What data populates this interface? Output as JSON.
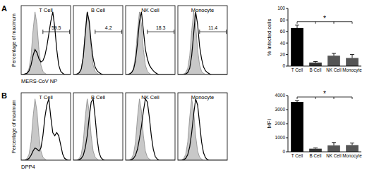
{
  "chart_data": [
    {
      "type": "line",
      "panel_label": "A",
      "title": "T Cell",
      "ylabel": "Percentage of maximum",
      "xlabel": "MERS-CoV NP",
      "tick_labels": false,
      "xlim": [
        0,
        100
      ],
      "ylim": [
        0,
        110
      ],
      "x": [
        0,
        4,
        8,
        12,
        16,
        20,
        24,
        28,
        32,
        36,
        40,
        44,
        48,
        52,
        56,
        60,
        64,
        68,
        72,
        76,
        80,
        84,
        88,
        92,
        96,
        100
      ],
      "series": [
        {
          "type": "area",
          "color": "#c8c8c8",
          "values": [
            0,
            0,
            1,
            3,
            10,
            30,
            70,
            100,
            80,
            40,
            15,
            5,
            2,
            0,
            0,
            0,
            0,
            0,
            0,
            0,
            0,
            0,
            0,
            0,
            0,
            0
          ]
        },
        {
          "type": "line",
          "color": "#000000",
          "values": [
            0,
            0,
            1,
            2,
            6,
            15,
            30,
            40,
            35,
            25,
            20,
            22,
            30,
            45,
            65,
            85,
            100,
            75,
            40,
            15,
            5,
            2,
            0,
            0,
            0,
            0
          ]
        }
      ],
      "gate": {
        "start": 44,
        "end": 98,
        "value": 59.5
      }
    },
    {
      "type": "line",
      "title": "B Cell",
      "tick_labels": false,
      "xlim": [
        0,
        100
      ],
      "ylim": [
        0,
        110
      ],
      "x": [
        0,
        4,
        8,
        12,
        16,
        20,
        24,
        28,
        32,
        36,
        40,
        44,
        48,
        52,
        56,
        60,
        64,
        68,
        72,
        76,
        80,
        84,
        88,
        92,
        96,
        100
      ],
      "series": [
        {
          "type": "area",
          "color": "#c8c8c8",
          "values": [
            0,
            0,
            1,
            3,
            10,
            30,
            70,
            100,
            80,
            40,
            15,
            5,
            2,
            0,
            0,
            0,
            0,
            0,
            0,
            0,
            0,
            0,
            0,
            0,
            0,
            0
          ]
        },
        {
          "type": "line",
          "color": "#000000",
          "values": [
            0,
            0,
            1,
            3,
            9,
            28,
            65,
            100,
            85,
            50,
            25,
            12,
            6,
            3,
            1,
            0,
            0,
            0,
            0,
            0,
            0,
            0,
            0,
            0,
            0,
            0
          ]
        }
      ],
      "gate": {
        "start": 44,
        "end": 98,
        "value": 4.2
      }
    },
    {
      "type": "line",
      "title": "NK Cell",
      "tick_labels": false,
      "xlim": [
        0,
        100
      ],
      "ylim": [
        0,
        110
      ],
      "x": [
        0,
        4,
        8,
        12,
        16,
        20,
        24,
        28,
        32,
        36,
        40,
        44,
        48,
        52,
        56,
        60,
        64,
        68,
        72,
        76,
        80,
        84,
        88,
        92,
        96,
        100
      ],
      "series": [
        {
          "type": "area",
          "color": "#c8c8c8",
          "values": [
            0,
            0,
            1,
            3,
            10,
            30,
            70,
            100,
            80,
            40,
            15,
            5,
            2,
            0,
            0,
            0,
            0,
            0,
            0,
            0,
            0,
            0,
            0,
            0,
            0,
            0
          ]
        },
        {
          "type": "line",
          "color": "#000000",
          "values": [
            0,
            0,
            1,
            3,
            8,
            22,
            50,
            85,
            100,
            70,
            40,
            25,
            15,
            10,
            6,
            3,
            1,
            0,
            0,
            0,
            0,
            0,
            0,
            0,
            0,
            0
          ]
        }
      ],
      "gate": {
        "start": 44,
        "end": 98,
        "value": 18.3
      }
    },
    {
      "type": "line",
      "title": "Monocyte",
      "tick_labels": false,
      "xlim": [
        0,
        100
      ],
      "ylim": [
        0,
        110
      ],
      "x": [
        0,
        4,
        8,
        12,
        16,
        20,
        24,
        28,
        32,
        36,
        40,
        44,
        48,
        52,
        56,
        60,
        64,
        68,
        72,
        76,
        80,
        84,
        88,
        92,
        96,
        100
      ],
      "series": [
        {
          "type": "area",
          "color": "#c8c8c8",
          "values": [
            0,
            0,
            0,
            1,
            3,
            10,
            30,
            70,
            100,
            80,
            40,
            15,
            5,
            2,
            0,
            0,
            0,
            0,
            0,
            0,
            0,
            0,
            0,
            0,
            0,
            0
          ]
        },
        {
          "type": "line",
          "color": "#000000",
          "values": [
            0,
            0,
            0,
            0,
            1,
            3,
            10,
            30,
            65,
            100,
            80,
            45,
            25,
            12,
            6,
            3,
            1,
            0,
            0,
            0,
            0,
            0,
            0,
            0,
            0,
            0
          ]
        }
      ],
      "gate": {
        "start": 44,
        "end": 98,
        "value": 11.4
      }
    },
    {
      "type": "bar",
      "ylabel": "% Infected cells",
      "categories": [
        "T Cell",
        "B Cell",
        "NK Cell",
        "Monocyte"
      ],
      "values": [
        66,
        6,
        18,
        14
      ],
      "errors": [
        5,
        2,
        4,
        6
      ],
      "colors": [
        "#000000",
        "#333333",
        "#555555",
        "#555555"
      ],
      "ylim": [
        0,
        100
      ],
      "yticks": [
        0,
        20,
        40,
        60,
        80,
        100
      ],
      "significance": {
        "label": "*",
        "from": 0,
        "to": [
          1,
          2,
          3
        ]
      }
    },
    {
      "type": "line",
      "panel_label": "B",
      "title": "T Cell",
      "ylabel": "Percentage of maximum",
      "xlabel": "DPP4",
      "tick_labels": false,
      "xlim": [
        0,
        100
      ],
      "ylim": [
        0,
        110
      ],
      "x": [
        0,
        4,
        8,
        12,
        16,
        20,
        24,
        28,
        32,
        36,
        40,
        44,
        48,
        52,
        56,
        60,
        64,
        68,
        72,
        76,
        80,
        84,
        88,
        92,
        96,
        100
      ],
      "series": [
        {
          "type": "area",
          "color": "#c8c8c8",
          "values": [
            0,
            0,
            1,
            3,
            10,
            30,
            70,
            100,
            80,
            40,
            15,
            5,
            2,
            0,
            0,
            0,
            0,
            0,
            0,
            0,
            0,
            0,
            0,
            0,
            0,
            0
          ]
        },
        {
          "type": "line",
          "color": "#000000",
          "values": [
            0,
            0,
            0,
            1,
            3,
            8,
            15,
            20,
            18,
            15,
            20,
            40,
            70,
            90,
            100,
            70,
            45,
            40,
            45,
            40,
            25,
            10,
            3,
            1,
            0,
            0
          ]
        }
      ]
    },
    {
      "type": "line",
      "title": "B Cell",
      "tick_labels": false,
      "xlim": [
        0,
        100
      ],
      "ylim": [
        0,
        110
      ],
      "x": [
        0,
        4,
        8,
        12,
        16,
        20,
        24,
        28,
        32,
        36,
        40,
        44,
        48,
        52,
        56,
        60,
        64,
        68,
        72,
        76,
        80,
        84,
        88,
        92,
        96,
        100
      ],
      "series": [
        {
          "type": "area",
          "color": "#c8c8c8",
          "values": [
            0,
            0,
            1,
            3,
            10,
            30,
            70,
            100,
            80,
            40,
            15,
            5,
            2,
            0,
            0,
            0,
            0,
            0,
            0,
            0,
            0,
            0,
            0,
            0,
            0,
            0
          ]
        },
        {
          "type": "line",
          "color": "#000000",
          "values": [
            0,
            0,
            0,
            1,
            3,
            8,
            20,
            40,
            70,
            95,
            100,
            70,
            35,
            12,
            4,
            1,
            0,
            0,
            0,
            0,
            0,
            0,
            0,
            0,
            0,
            0
          ]
        }
      ]
    },
    {
      "type": "line",
      "title": "NK Cell",
      "tick_labels": false,
      "xlim": [
        0,
        100
      ],
      "ylim": [
        0,
        110
      ],
      "x": [
        0,
        4,
        8,
        12,
        16,
        20,
        24,
        28,
        32,
        36,
        40,
        44,
        48,
        52,
        56,
        60,
        64,
        68,
        72,
        76,
        80,
        84,
        88,
        92,
        96,
        100
      ],
      "series": [
        {
          "type": "area",
          "color": "#c8c8c8",
          "values": [
            0,
            0,
            1,
            3,
            10,
            30,
            70,
            100,
            80,
            40,
            15,
            5,
            2,
            0,
            0,
            0,
            0,
            0,
            0,
            0,
            0,
            0,
            0,
            0,
            0,
            0
          ]
        },
        {
          "type": "line",
          "color": "#000000",
          "values": [
            0,
            0,
            0,
            1,
            3,
            8,
            18,
            35,
            55,
            80,
            100,
            95,
            70,
            40,
            18,
            6,
            2,
            0,
            0,
            0,
            0,
            0,
            0,
            0,
            0,
            0
          ]
        }
      ]
    },
    {
      "type": "line",
      "title": "Monocyte",
      "tick_labels": false,
      "xlim": [
        0,
        100
      ],
      "ylim": [
        0,
        110
      ],
      "x": [
        0,
        4,
        8,
        12,
        16,
        20,
        24,
        28,
        32,
        36,
        40,
        44,
        48,
        52,
        56,
        60,
        64,
        68,
        72,
        76,
        80,
        84,
        88,
        92,
        96,
        100
      ],
      "series": [
        {
          "type": "area",
          "color": "#c8c8c8",
          "values": [
            0,
            0,
            1,
            3,
            10,
            30,
            70,
            100,
            80,
            40,
            15,
            5,
            2,
            0,
            0,
            0,
            0,
            0,
            0,
            0,
            0,
            0,
            0,
            0,
            0,
            0
          ]
        },
        {
          "type": "line",
          "color": "#000000",
          "values": [
            0,
            0,
            0,
            1,
            3,
            9,
            22,
            45,
            75,
            100,
            90,
            60,
            30,
            12,
            4,
            1,
            0,
            0,
            0,
            0,
            0,
            0,
            0,
            0,
            0,
            0
          ]
        }
      ]
    },
    {
      "type": "bar",
      "ylabel": "MFI",
      "categories": [
        "T Cell",
        "B Cell",
        "NK Cell",
        "Monocyte"
      ],
      "values": [
        3550,
        220,
        460,
        480
      ],
      "errors": [
        100,
        60,
        200,
        150
      ],
      "colors": [
        "#000000",
        "#333333",
        "#555555",
        "#555555"
      ],
      "ylim": [
        0,
        4000
      ],
      "yticks": [
        0,
        1000,
        2000,
        3000,
        4000
      ],
      "significance": {
        "label": "*",
        "from": 0,
        "to": [
          1,
          2,
          3
        ]
      }
    }
  ]
}
